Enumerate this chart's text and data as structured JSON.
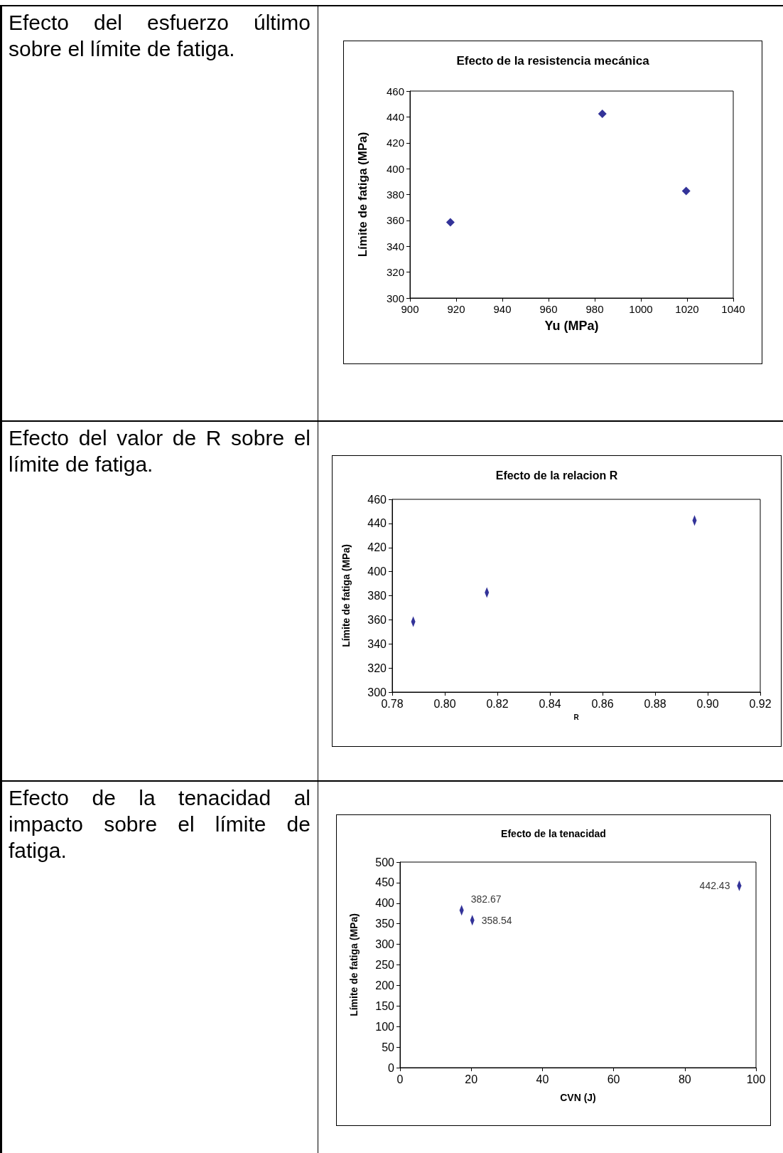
{
  "chart_data": [
    {
      "type": "scatter",
      "title": "Efecto de la resistencia mecánica",
      "xlabel": "Yu (MPa)",
      "ylabel": "Límite de fatiga (MPa)",
      "annotations": [
        "Efecto del esfuerzo último sobre el límite de fatiga."
      ],
      "x": [
        917.5,
        983.3,
        1019.6
      ],
      "values": [
        358.5,
        442.4,
        382.7
      ],
      "color": "#000080",
      "marker": "diamond",
      "xlim": [
        900,
        1040
      ],
      "xticks": [
        900,
        920,
        940,
        960,
        980,
        1000,
        1020,
        1040
      ],
      "ylim": [
        300,
        460
      ],
      "yticks": [
        300,
        320,
        340,
        360,
        380,
        400,
        420,
        440,
        460
      ]
    },
    {
      "type": "scatter",
      "title": "Efecto de la relacion R",
      "xlabel": "R",
      "ylabel": "Límite de fatiga (MPa)",
      "annotations": [
        "Efecto del valor de R  sobre el límite de fatiga."
      ],
      "x": [
        0.788,
        0.816,
        0.895
      ],
      "values": [
        358.5,
        382.7,
        442.4
      ],
      "color": "#000080",
      "marker": "diamond",
      "xlim": [
        0.78,
        0.92
      ],
      "xticks": [
        {
          "value": 0.78,
          "label": "0.78"
        },
        {
          "value": 0.8,
          "label": "0.80"
        },
        {
          "value": 0.82,
          "label": "0.82"
        },
        {
          "value": 0.84,
          "label": "0.84"
        },
        {
          "value": 0.86,
          "label": "0.86"
        },
        {
          "value": 0.88,
          "label": "0.88"
        },
        {
          "value": 0.9,
          "label": "0.90"
        },
        {
          "value": 0.92,
          "label": "0.92"
        }
      ],
      "ylim": [
        300,
        460
      ],
      "yticks": [
        300,
        320,
        340,
        360,
        380,
        400,
        420,
        440,
        460
      ]
    },
    {
      "type": "scatter",
      "title": "Efecto de la tenacidad",
      "xlabel": "CVN (J)",
      "ylabel": "Límite de fatiga (MPa)",
      "annotations": [
        "Efecto de la tenacidad al impacto sobre el límite de fatiga."
      ],
      "x": [
        17.3,
        20.3,
        95.3
      ],
      "values": [
        382.67,
        358.54,
        442.43
      ],
      "data_labels": true,
      "color": "#000080",
      "marker": "diamond",
      "xlim": [
        0,
        100
      ],
      "xticks": [
        0,
        20,
        40,
        60,
        80,
        100
      ],
      "ylim": [
        0,
        500
      ],
      "yticks": [
        0,
        50,
        100,
        150,
        200,
        250,
        300,
        350,
        400,
        450,
        500
      ]
    }
  ]
}
